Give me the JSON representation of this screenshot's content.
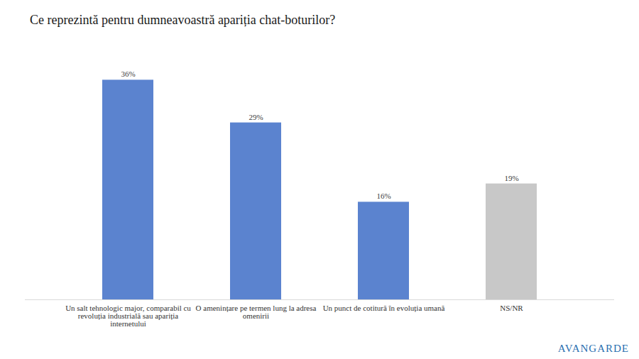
{
  "chart_data": {
    "type": "bar",
    "title": "Ce reprezintă pentru dumneavoastră apariția chat-boturilor?",
    "categories": [
      "Un salt tehnologic major, comparabil cu revoluția industrială sau apariția internetului",
      "O amenințare pe termen lung la adresa omenirii",
      "Un punct de cotitură în evoluția umană",
      "NS/NR"
    ],
    "values": [
      36,
      29,
      16,
      19
    ],
    "value_labels": [
      "36%",
      "29%",
      "16%",
      "19%"
    ],
    "colors": [
      "#5b83cf",
      "#5b83cf",
      "#5b83cf",
      "#c8c8c8"
    ],
    "ylim": [
      0,
      40
    ],
    "grid": false,
    "data_labels": true,
    "tick_labels": "x",
    "annotations": [
      "AVANGARDE"
    ]
  }
}
